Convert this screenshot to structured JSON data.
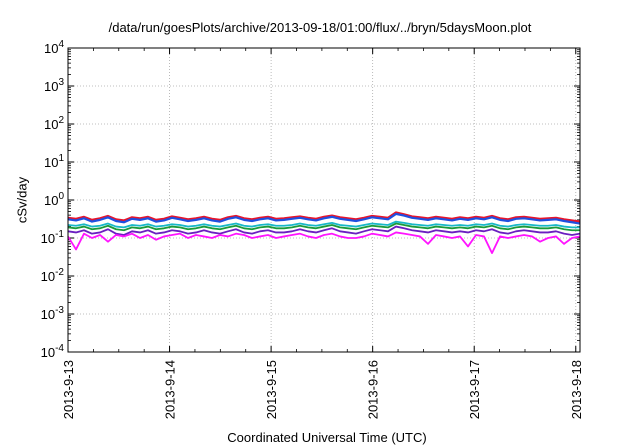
{
  "chart_data": {
    "type": "line",
    "title": "/data/run/goesPlots/archive/2013-09-18/01:00/flux/../bryn/5daysMoon.plot",
    "xlabel": "Coordinated Universal Time (UTC)",
    "ylabel": "cSv/day",
    "yscale": "log",
    "ylim": [
      0.0001,
      10000
    ],
    "yticks": [
      {
        "base": "10",
        "exp": "-4",
        "value": 0.0001
      },
      {
        "base": "10",
        "exp": "-3",
        "value": 0.001
      },
      {
        "base": "10",
        "exp": "-2",
        "value": 0.01
      },
      {
        "base": "10",
        "exp": "-1",
        "value": 0.1
      },
      {
        "base": "10",
        "exp": "0",
        "value": 1
      },
      {
        "base": "10",
        "exp": "1",
        "value": 10
      },
      {
        "base": "10",
        "exp": "2",
        "value": 100
      },
      {
        "base": "10",
        "exp": "3",
        "value": 1000
      },
      {
        "base": "10",
        "exp": "4",
        "value": 10000
      }
    ],
    "xlim": [
      "2013-09-13T00:00",
      "2013-09-18T01:00"
    ],
    "xticks": [
      "2013-9-13",
      "2013-9-14",
      "2013-9-15",
      "2013-9-16",
      "2013-9-17",
      "2013-9-18"
    ],
    "grid": true,
    "legend": "none",
    "series": [
      {
        "color": "#e8142a",
        "values": [
          0.34,
          0.32,
          0.36,
          0.3,
          0.33,
          0.38,
          0.31,
          0.29,
          0.35,
          0.33,
          0.36,
          0.3,
          0.32,
          0.37,
          0.34,
          0.31,
          0.33,
          0.36,
          0.32,
          0.3,
          0.35,
          0.38,
          0.33,
          0.31,
          0.34,
          0.36,
          0.32,
          0.33,
          0.35,
          0.37,
          0.34,
          0.32,
          0.36,
          0.39,
          0.35,
          0.33,
          0.31,
          0.34,
          0.38,
          0.36,
          0.34,
          0.47,
          0.42,
          0.37,
          0.35,
          0.33,
          0.36,
          0.34,
          0.32,
          0.35,
          0.33,
          0.36,
          0.34,
          0.38,
          0.33,
          0.31,
          0.35,
          0.36,
          0.34,
          0.32,
          0.33,
          0.34,
          0.31,
          0.29,
          0.27
        ]
      },
      {
        "color": "#1f4fe0",
        "values": [
          0.31,
          0.29,
          0.33,
          0.27,
          0.3,
          0.35,
          0.28,
          0.26,
          0.32,
          0.3,
          0.33,
          0.27,
          0.29,
          0.34,
          0.31,
          0.28,
          0.3,
          0.33,
          0.29,
          0.27,
          0.32,
          0.35,
          0.3,
          0.28,
          0.31,
          0.33,
          0.29,
          0.3,
          0.32,
          0.34,
          0.31,
          0.29,
          0.33,
          0.36,
          0.32,
          0.3,
          0.28,
          0.31,
          0.35,
          0.33,
          0.31,
          0.43,
          0.39,
          0.34,
          0.32,
          0.3,
          0.33,
          0.31,
          0.29,
          0.32,
          0.3,
          0.33,
          0.31,
          0.35,
          0.3,
          0.28,
          0.32,
          0.33,
          0.31,
          0.29,
          0.3,
          0.31,
          0.28,
          0.26,
          0.24
        ]
      },
      {
        "color": "#17b8c8",
        "values": [
          0.22,
          0.21,
          0.23,
          0.2,
          0.21,
          0.24,
          0.2,
          0.19,
          0.22,
          0.21,
          0.23,
          0.2,
          0.21,
          0.23,
          0.22,
          0.2,
          0.21,
          0.23,
          0.21,
          0.2,
          0.22,
          0.24,
          0.21,
          0.2,
          0.22,
          0.23,
          0.21,
          0.21,
          0.22,
          0.24,
          0.22,
          0.21,
          0.23,
          0.25,
          0.22,
          0.21,
          0.2,
          0.22,
          0.24,
          0.23,
          0.22,
          0.27,
          0.25,
          0.23,
          0.22,
          0.21,
          0.23,
          0.22,
          0.21,
          0.22,
          0.21,
          0.23,
          0.22,
          0.24,
          0.21,
          0.2,
          0.22,
          0.23,
          0.22,
          0.21,
          0.21,
          0.22,
          0.2,
          0.19,
          0.19
        ]
      },
      {
        "color": "#1a9a3a",
        "values": [
          0.19,
          0.18,
          0.2,
          0.17,
          0.18,
          0.21,
          0.17,
          0.16,
          0.19,
          0.18,
          0.2,
          0.17,
          0.18,
          0.2,
          0.19,
          0.17,
          0.18,
          0.2,
          0.18,
          0.17,
          0.19,
          0.21,
          0.18,
          0.17,
          0.19,
          0.2,
          0.18,
          0.18,
          0.19,
          0.21,
          0.19,
          0.18,
          0.2,
          0.22,
          0.19,
          0.18,
          0.17,
          0.19,
          0.21,
          0.2,
          0.19,
          0.24,
          0.22,
          0.2,
          0.19,
          0.18,
          0.2,
          0.19,
          0.18,
          0.19,
          0.18,
          0.2,
          0.19,
          0.21,
          0.18,
          0.17,
          0.19,
          0.2,
          0.19,
          0.18,
          0.18,
          0.19,
          0.17,
          0.16,
          0.16
        ]
      },
      {
        "color": "#6a1fc0",
        "values": [
          0.15,
          0.14,
          0.16,
          0.13,
          0.14,
          0.17,
          0.13,
          0.12,
          0.15,
          0.14,
          0.16,
          0.13,
          0.14,
          0.16,
          0.15,
          0.13,
          0.14,
          0.16,
          0.14,
          0.13,
          0.15,
          0.17,
          0.14,
          0.13,
          0.15,
          0.16,
          0.14,
          0.14,
          0.15,
          0.17,
          0.15,
          0.14,
          0.16,
          0.18,
          0.15,
          0.14,
          0.13,
          0.15,
          0.17,
          0.16,
          0.15,
          0.2,
          0.18,
          0.16,
          0.15,
          0.14,
          0.16,
          0.15,
          0.14,
          0.15,
          0.14,
          0.16,
          0.15,
          0.17,
          0.14,
          0.13,
          0.15,
          0.16,
          0.15,
          0.14,
          0.14,
          0.15,
          0.13,
          0.12,
          0.13
        ]
      },
      {
        "color": "#ff14ff",
        "values": [
          0.11,
          0.05,
          0.13,
          0.1,
          0.12,
          0.08,
          0.12,
          0.11,
          0.13,
          0.1,
          0.12,
          0.09,
          0.11,
          0.12,
          0.13,
          0.1,
          0.12,
          0.11,
          0.1,
          0.12,
          0.11,
          0.13,
          0.12,
          0.1,
          0.11,
          0.12,
          0.1,
          0.11,
          0.12,
          0.13,
          0.11,
          0.1,
          0.12,
          0.13,
          0.11,
          0.1,
          0.1,
          0.11,
          0.13,
          0.12,
          0.11,
          0.14,
          0.13,
          0.12,
          0.11,
          0.07,
          0.12,
          0.11,
          0.1,
          0.11,
          0.06,
          0.12,
          0.11,
          0.04,
          0.11,
          0.1,
          0.11,
          0.12,
          0.11,
          0.08,
          0.1,
          0.11,
          0.07,
          0.1,
          0.11
        ]
      }
    ]
  }
}
